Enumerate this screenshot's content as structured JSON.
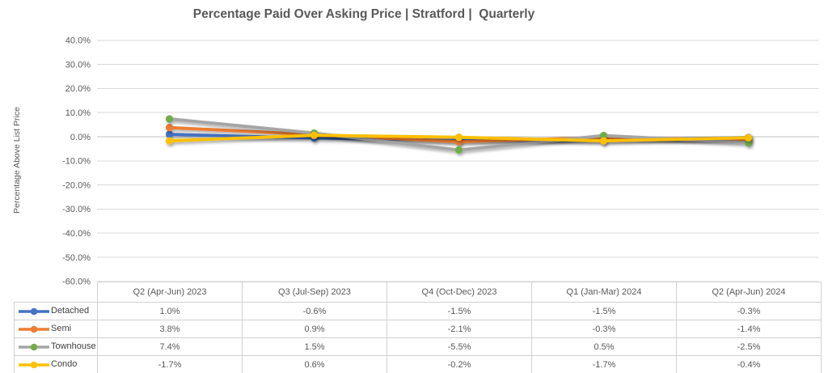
{
  "title": "Percentage Paid Over Asking Price | Stratford |  Quarterly",
  "y_axis_label": "Percentage Above List Price",
  "chart_data": {
    "type": "line",
    "title": "Percentage Paid Over Asking Price | Stratford |  Quarterly",
    "xlabel": "",
    "ylabel": "Percentage Above List Price",
    "categories": [
      "Q2 (Apr-Jun) 2023",
      "Q3 (Jul-Sep) 2023",
      "Q4 (Oct-Dec) 2023",
      "Q1 (Jan-Mar) 2024",
      "Q2 (Apr-Jun) 2024"
    ],
    "series": [
      {
        "name": "Detached",
        "line_color": "#4472C4",
        "marker_color": "#4472C4",
        "values": [
          1.0,
          -0.6,
          -1.5,
          -1.5,
          -0.3
        ]
      },
      {
        "name": "Semi",
        "line_color": "#ED7D31",
        "marker_color": "#ED7D31",
        "values": [
          3.8,
          0.9,
          -2.1,
          -0.3,
          -1.4
        ]
      },
      {
        "name": "Townhouse",
        "line_color": "#A5A5A5",
        "marker_color": "#70AD47",
        "values": [
          7.4,
          1.5,
          -5.5,
          0.5,
          -2.5
        ]
      },
      {
        "name": "Condo",
        "line_color": "#FFC000",
        "marker_color": "#FFC000",
        "values": [
          -1.7,
          0.6,
          -0.2,
          -1.7,
          -0.4
        ]
      }
    ],
    "y_ticks": [
      40,
      30,
      20,
      10,
      0,
      -10,
      -20,
      -30,
      -40,
      -50,
      -60
    ],
    "ylim": [
      -60,
      40
    ],
    "value_suffix": "%",
    "value_decimals": 1,
    "grid": true,
    "legend_position": "table-left",
    "data_table_shown": true
  },
  "colors": {
    "grid": "#d9d9d9",
    "axis_zero": "#c0c0c0",
    "tick_text": "#595959",
    "title_text": "#595959",
    "table_border": "#d0d0d0",
    "table_text": "#595959"
  }
}
